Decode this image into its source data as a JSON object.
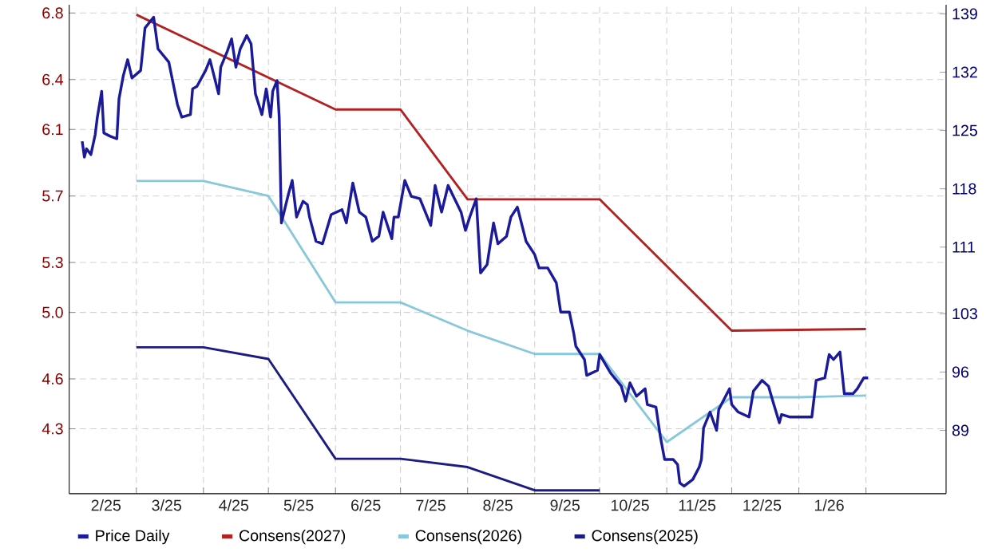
{
  "chart_data": {
    "type": "line",
    "xlim": [
      "2025-01-29",
      "2026-03-10"
    ],
    "xticks": [
      {
        "value": "2025-02-15",
        "label": "2/25"
      },
      {
        "value": "2025-03-01",
        "label": null
      },
      {
        "value": "2025-03-15",
        "label": "3/25"
      },
      {
        "value": "2025-04-01",
        "label": null
      },
      {
        "value": "2025-04-15",
        "label": "4/25"
      },
      {
        "value": "2025-05-01",
        "label": null
      },
      {
        "value": "2025-05-15",
        "label": "5/25"
      },
      {
        "value": "2025-06-01",
        "label": null
      },
      {
        "value": "2025-06-15",
        "label": "6/25"
      },
      {
        "value": "2025-07-01",
        "label": null
      },
      {
        "value": "2025-07-15",
        "label": "7/25"
      },
      {
        "value": "2025-08-01",
        "label": null
      },
      {
        "value": "2025-08-15",
        "label": "8/25"
      },
      {
        "value": "2025-09-01",
        "label": null
      },
      {
        "value": "2025-09-15",
        "label": "9/25"
      },
      {
        "value": "2025-10-01",
        "label": null
      },
      {
        "value": "2025-10-15",
        "label": "10/25"
      },
      {
        "value": "2025-11-01",
        "label": null
      },
      {
        "value": "2025-11-15",
        "label": "11/25"
      },
      {
        "value": "2025-12-01",
        "label": null
      },
      {
        "value": "2025-12-15",
        "label": "12/25"
      },
      {
        "value": "2026-01-01",
        "label": null
      },
      {
        "value": "2026-01-15",
        "label": "1/26"
      },
      {
        "value": "2026-02-01",
        "label": null
      }
    ],
    "ylim": [
      3.91,
      6.85
    ],
    "yticks": [
      {
        "value": 4.3,
        "label": "4.3"
      },
      {
        "value": 4.6,
        "label": "4.6"
      },
      {
        "value": 5.0,
        "label": "5.0"
      },
      {
        "value": 5.3,
        "label": "5.3"
      },
      {
        "value": 5.7,
        "label": "5.7"
      },
      {
        "value": 6.1,
        "label": "6.1"
      },
      {
        "value": 6.4,
        "label": "6.4"
      },
      {
        "value": 6.8,
        "label": "6.8"
      }
    ],
    "y2lim": [
      81.4,
      140.1
    ],
    "y2ticks": [
      89,
      96,
      103,
      111,
      118,
      125,
      132,
      139
    ],
    "grid": true,
    "legend": "bottom",
    "series": [
      {
        "name": "Price Daily",
        "color": "#1a1a9a",
        "axis": "y2",
        "x": [
          "2025-02-04",
          "2025-02-05",
          "2025-02-06",
          "2025-02-08",
          "2025-02-10",
          "2025-02-11",
          "2025-02-13",
          "2025-02-14",
          "2025-02-17",
          "2025-02-20",
          "2025-02-21",
          "2025-02-23",
          "2025-02-25",
          "2025-02-27",
          "2025-03-03",
          "2025-03-05",
          "2025-03-09",
          "2025-03-11",
          "2025-03-16",
          "2025-03-20",
          "2025-03-22",
          "2025-03-26",
          "2025-03-27",
          "2025-03-29",
          "2025-04-02",
          "2025-04-04",
          "2025-04-08",
          "2025-04-09",
          "2025-04-12",
          "2025-04-14",
          "2025-04-16",
          "2025-04-18",
          "2025-04-21",
          "2025-04-23",
          "2025-04-25",
          "2025-04-28",
          "2025-04-30",
          "2025-05-02",
          "2025-05-03",
          "2025-05-05",
          "2025-05-06",
          "2025-05-07",
          "2025-05-10",
          "2025-05-12",
          "2025-05-14",
          "2025-05-17",
          "2025-05-19",
          "2025-05-20",
          "2025-05-23",
          "2025-05-26",
          "2025-05-30",
          "2025-06-04",
          "2025-06-06",
          "2025-06-09",
          "2025-06-12",
          "2025-06-15",
          "2025-06-18",
          "2025-06-21",
          "2025-06-23",
          "2025-06-27",
          "2025-06-28",
          "2025-06-30",
          "2025-07-03",
          "2025-07-06",
          "2025-07-10",
          "2025-07-15",
          "2025-07-17",
          "2025-07-20",
          "2025-07-23",
          "2025-07-26",
          "2025-07-29",
          "2025-07-31",
          "2025-08-02",
          "2025-08-05",
          "2025-08-07",
          "2025-08-10",
          "2025-08-13",
          "2025-08-15",
          "2025-08-19",
          "2025-08-21",
          "2025-08-24",
          "2025-08-28",
          "2025-09-01",
          "2025-09-03",
          "2025-09-07",
          "2025-09-11",
          "2025-09-13",
          "2025-09-17",
          "2025-09-19",
          "2025-09-20",
          "2025-09-24",
          "2025-09-25",
          "2025-09-30",
          "2025-10-01",
          "2025-10-06",
          "2025-10-11",
          "2025-10-13",
          "2025-10-15",
          "2025-10-18",
          "2025-10-22",
          "2025-10-23",
          "2025-10-27",
          "2025-10-29",
          "2025-10-31",
          "2025-11-04",
          "2025-11-06",
          "2025-11-07",
          "2025-11-09",
          "2025-11-13",
          "2025-11-16",
          "2025-11-17",
          "2025-11-18",
          "2025-11-21",
          "2025-11-24",
          "2025-11-25",
          "2025-11-30",
          "2025-12-01",
          "2025-12-04",
          "2025-12-09",
          "2025-12-11",
          "2025-12-15",
          "2025-12-18",
          "2025-12-20",
          "2025-12-23",
          "2025-12-24",
          "2025-12-28",
          "2026-01-02",
          "2026-01-07",
          "2026-01-09",
          "2026-01-13",
          "2026-01-15",
          "2026-01-17",
          "2026-01-20",
          "2026-01-22",
          "2026-01-26",
          "2026-01-28",
          "2026-01-31",
          "2026-02-02"
        ],
        "values": [
          123.7,
          121.8,
          122.8,
          122.1,
          124.5,
          126.6,
          129.7,
          124.7,
          124.3,
          124.0,
          128.8,
          131.6,
          133.5,
          131.3,
          132.2,
          137.3,
          138.6,
          134.8,
          133.2,
          128.1,
          126.6,
          126.9,
          130.0,
          130.3,
          132.2,
          133.5,
          129.4,
          132.6,
          134.5,
          136.0,
          132.6,
          134.8,
          136.4,
          135.4,
          129.4,
          126.9,
          130.0,
          126.6,
          129.7,
          131.0,
          126.6,
          113.9,
          117.1,
          119.0,
          114.6,
          116.5,
          116.1,
          114.6,
          111.7,
          111.4,
          114.9,
          115.5,
          113.9,
          118.7,
          115.2,
          114.6,
          111.7,
          112.3,
          115.2,
          112.0,
          114.6,
          114.6,
          119.0,
          117.1,
          116.8,
          113.6,
          118.4,
          115.2,
          118.4,
          116.8,
          115.2,
          113.0,
          114.6,
          116.8,
          107.9,
          108.9,
          113.9,
          111.4,
          112.3,
          114.6,
          115.8,
          111.7,
          110.1,
          108.5,
          108.5,
          106.7,
          103.2,
          103.2,
          100.7,
          99.1,
          97.5,
          95.6,
          96.2,
          98.1,
          95.9,
          94.3,
          92.5,
          94.7,
          93.1,
          94.0,
          92.1,
          91.8,
          88.3,
          85.5,
          85.5,
          84.9,
          82.7,
          82.3,
          83.1,
          84.6,
          85.5,
          89.3,
          91.2,
          89.0,
          91.5,
          94.0,
          92.1,
          91.2,
          90.6,
          93.7,
          95.0,
          94.3,
          92.5,
          89.9,
          90.9,
          90.6,
          90.6,
          90.6,
          95.0,
          95.3,
          98.1,
          97.5,
          98.4,
          93.4,
          93.4,
          94.0,
          95.3,
          95.3
        ]
      },
      {
        "name": "Consens(2027)",
        "color": "#b22222",
        "x": [
          "2025-03-01",
          "2025-06-01",
          "2025-07-01",
          "2025-08-01",
          "2025-10-01",
          "2025-12-01",
          "2026-02-01"
        ],
        "values": [
          6.79,
          6.22,
          6.22,
          5.68,
          5.68,
          4.89,
          4.9
        ]
      },
      {
        "name": "Consens(2026)",
        "color": "#88c8da",
        "x": [
          "2025-03-01",
          "2025-04-01",
          "2025-05-01",
          "2025-06-01",
          "2025-07-01",
          "2025-08-01",
          "2025-09-01",
          "2025-10-01",
          "2025-11-01",
          "2025-12-01",
          "2026-01-01",
          "2026-02-01"
        ],
        "values": [
          5.79,
          5.79,
          5.7,
          5.06,
          5.06,
          4.89,
          4.75,
          4.75,
          4.22,
          4.49,
          4.49,
          4.5
        ]
      },
      {
        "name": "Consens(2025)",
        "color": "#1c1c80",
        "x": [
          "2025-03-01",
          "2025-04-01",
          "2025-05-01",
          "2025-06-01",
          "2025-07-01",
          "2025-08-01",
          "2025-09-01",
          "2025-10-01"
        ],
        "values": [
          4.79,
          4.79,
          4.72,
          4.12,
          4.12,
          4.07,
          3.93,
          3.93
        ]
      }
    ]
  }
}
